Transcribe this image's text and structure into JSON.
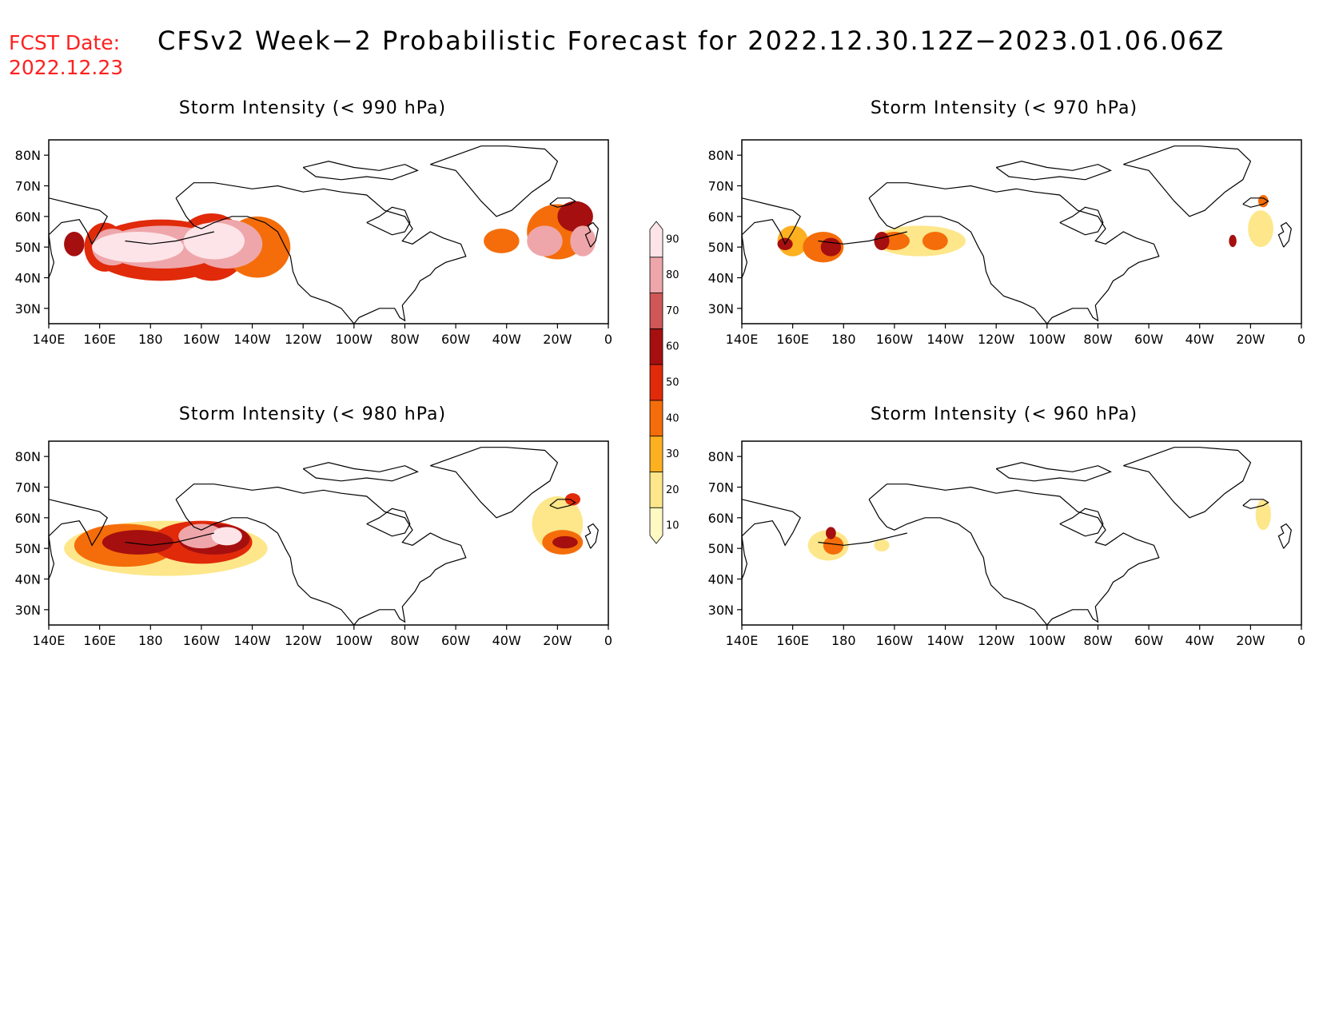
{
  "header": {
    "fcst_label": "FCST Date:",
    "fcst_date": "2022.12.23",
    "title": "CFSv2 Week−2 Probabilistic Forecast for 2022.12.30.12Z−2023.01.06.06Z"
  },
  "axes": {
    "lon_labels": [
      "140E",
      "160E",
      "180",
      "160W",
      "140W",
      "120W",
      "100W",
      "80W",
      "60W",
      "40W",
      "20W",
      "0"
    ],
    "lat_labels": [
      "80N",
      "70N",
      "60N",
      "50N",
      "40N",
      "30N"
    ]
  },
  "colorbar": {
    "levels": [
      "10",
      "20",
      "30",
      "40",
      "50",
      "60",
      "70",
      "80",
      "90"
    ],
    "colors": [
      "#fff9c4",
      "#fde78a",
      "#fdb020",
      "#f46d0a",
      "#e02a0a",
      "#a50f0f",
      "#cf5757",
      "#eea6aa",
      "#fde4e8"
    ]
  },
  "panels": [
    {
      "title": "Storm Intensity (< 990 hPa)",
      "blobs": [
        {
          "lon": 150,
          "lat": 51,
          "rx": 4,
          "ry": 4,
          "level": 5
        },
        {
          "lon": 162,
          "lat": 50,
          "rx": 8,
          "ry": 8,
          "level": 4
        },
        {
          "lon": 184,
          "lat": 49,
          "rx": 28,
          "ry": 10,
          "level": 4
        },
        {
          "lon": 204,
          "lat": 50,
          "rx": 14,
          "ry": 11,
          "level": 4
        },
        {
          "lon": 222,
          "lat": 50,
          "rx": 13,
          "ry": 10,
          "level": 3
        },
        {
          "lon": 165,
          "lat": 50,
          "rx": 8,
          "ry": 6,
          "level": 7
        },
        {
          "lon": 185,
          "lat": 50,
          "rx": 24,
          "ry": 7,
          "level": 7
        },
        {
          "lon": 210,
          "lat": 51,
          "rx": 14,
          "ry": 8,
          "level": 7
        },
        {
          "lon": 175,
          "lat": 50,
          "rx": 18,
          "ry": 5,
          "level": 8
        },
        {
          "lon": 205,
          "lat": 52,
          "rx": 12,
          "ry": 6,
          "level": 8
        },
        {
          "lon": 318,
          "lat": 52,
          "rx": 7,
          "ry": 4,
          "level": 3
        },
        {
          "lon": 340,
          "lat": 55,
          "rx": 12,
          "ry": 9,
          "level": 3
        },
        {
          "lon": 347,
          "lat": 60,
          "rx": 7,
          "ry": 5,
          "level": 5
        },
        {
          "lon": 335,
          "lat": 52,
          "rx": 7,
          "ry": 5,
          "level": 7
        },
        {
          "lon": 350,
          "lat": 52,
          "rx": 5,
          "ry": 5,
          "level": 7
        }
      ]
    },
    {
      "title": "Storm Intensity (< 970 hPa)",
      "blobs": [
        {
          "lon": 160,
          "lat": 52,
          "rx": 6,
          "ry": 5,
          "level": 2
        },
        {
          "lon": 172,
          "lat": 50,
          "rx": 8,
          "ry": 5,
          "level": 3
        },
        {
          "lon": 157,
          "lat": 51,
          "rx": 3,
          "ry": 2,
          "level": 5
        },
        {
          "lon": 175,
          "lat": 50,
          "rx": 4,
          "ry": 3,
          "level": 5
        },
        {
          "lon": 210,
          "lat": 52,
          "rx": 18,
          "ry": 5,
          "level": 1
        },
        {
          "lon": 200,
          "lat": 52,
          "rx": 6,
          "ry": 3,
          "level": 3
        },
        {
          "lon": 195,
          "lat": 52,
          "rx": 3,
          "ry": 3,
          "level": 5
        },
        {
          "lon": 216,
          "lat": 52,
          "rx": 5,
          "ry": 3,
          "level": 3
        },
        {
          "lon": 344,
          "lat": 56,
          "rx": 5,
          "ry": 6,
          "level": 1
        },
        {
          "lon": 345,
          "lat": 65,
          "rx": 2,
          "ry": 2,
          "level": 3
        },
        {
          "lon": 333,
          "lat": 52,
          "rx": 1.5,
          "ry": 2,
          "level": 5
        }
      ]
    },
    {
      "title": "Storm Intensity (< 980 hPa)",
      "blobs": [
        {
          "lon": 186,
          "lat": 50,
          "rx": 40,
          "ry": 9,
          "level": 1
        },
        {
          "lon": 170,
          "lat": 51,
          "rx": 20,
          "ry": 7,
          "level": 3
        },
        {
          "lon": 200,
          "lat": 52,
          "rx": 20,
          "ry": 7,
          "level": 4
        },
        {
          "lon": 175,
          "lat": 52,
          "rx": 14,
          "ry": 4,
          "level": 5
        },
        {
          "lon": 205,
          "lat": 53,
          "rx": 14,
          "ry": 5,
          "level": 5
        },
        {
          "lon": 200,
          "lat": 54,
          "rx": 9,
          "ry": 4,
          "level": 7
        },
        {
          "lon": 210,
          "lat": 54,
          "rx": 6,
          "ry": 3,
          "level": 8
        },
        {
          "lon": 340,
          "lat": 58,
          "rx": 10,
          "ry": 9,
          "level": 1
        },
        {
          "lon": 342,
          "lat": 52,
          "rx": 8,
          "ry": 4,
          "level": 3
        },
        {
          "lon": 343,
          "lat": 52,
          "rx": 5,
          "ry": 2,
          "level": 5
        },
        {
          "lon": 346,
          "lat": 66,
          "rx": 3,
          "ry": 2,
          "level": 4
        }
      ]
    },
    {
      "title": "Storm Intensity (< 960 hPa)",
      "blobs": [
        {
          "lon": 174,
          "lat": 51,
          "rx": 8,
          "ry": 5,
          "level": 1
        },
        {
          "lon": 176,
          "lat": 51,
          "rx": 4,
          "ry": 3,
          "level": 3
        },
        {
          "lon": 175,
          "lat": 55,
          "rx": 2,
          "ry": 2,
          "level": 5
        },
        {
          "lon": 195,
          "lat": 51,
          "rx": 3,
          "ry": 2,
          "level": 1
        },
        {
          "lon": 345,
          "lat": 61,
          "rx": 3,
          "ry": 5,
          "level": 1
        }
      ]
    }
  ]
}
